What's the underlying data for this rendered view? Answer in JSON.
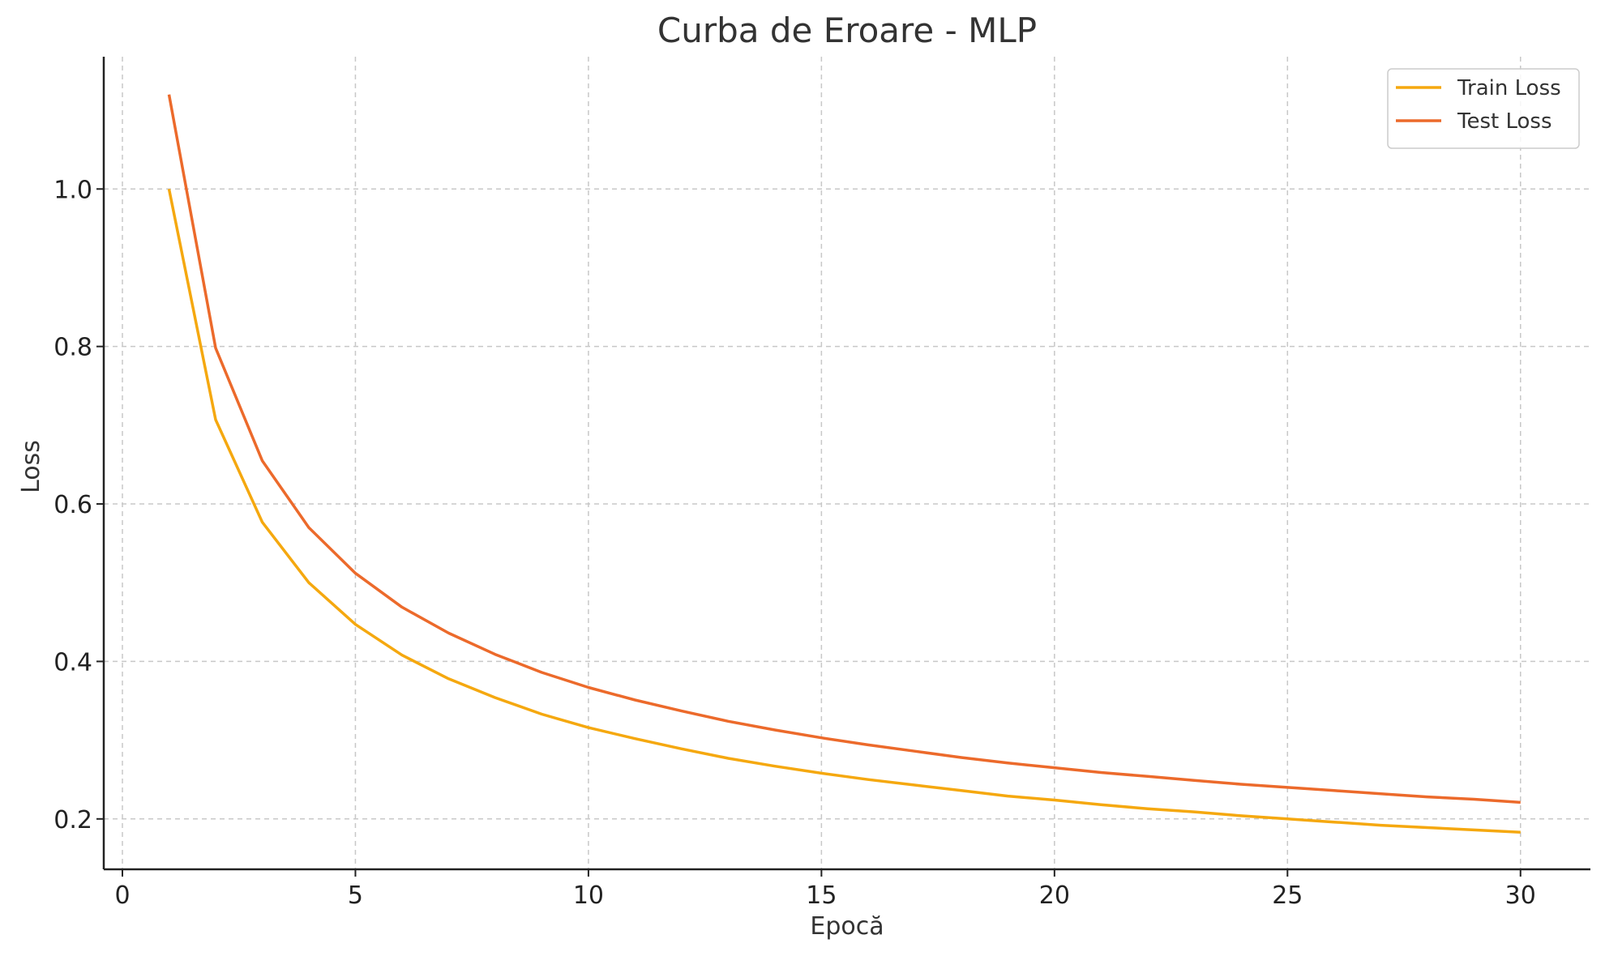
{
  "chart_data": {
    "type": "line",
    "title": "Curba de Eroare - MLP",
    "xlabel": "Epocă",
    "ylabel": "Loss",
    "xlim": [
      -0.4,
      31.5
    ],
    "ylim": [
      0.136,
      1.168
    ],
    "xticks": [
      0,
      5,
      10,
      15,
      20,
      25,
      30
    ],
    "yticks": [
      0.2,
      0.4,
      0.6,
      0.8,
      1.0
    ],
    "grid": true,
    "legend_position": "top-right",
    "x": [
      1,
      2,
      3,
      4,
      5,
      6,
      7,
      8,
      9,
      10,
      11,
      12,
      13,
      14,
      15,
      16,
      17,
      18,
      19,
      20,
      21,
      22,
      23,
      24,
      25,
      26,
      27,
      28,
      29,
      30
    ],
    "series": [
      {
        "name": "Train Loss",
        "color": "#f5a80f",
        "values": [
          1.0,
          0.707,
          0.577,
          0.5,
          0.447,
          0.408,
          0.378,
          0.354,
          0.333,
          0.316,
          0.302,
          0.289,
          0.277,
          0.267,
          0.258,
          0.25,
          0.243,
          0.236,
          0.229,
          0.224,
          0.218,
          0.213,
          0.209,
          0.204,
          0.2,
          0.196,
          0.192,
          0.189,
          0.186,
          0.183
        ]
      },
      {
        "name": "Test Loss",
        "color": "#ec6a2b",
        "values": [
          1.12,
          0.798,
          0.655,
          0.57,
          0.512,
          0.469,
          0.436,
          0.409,
          0.386,
          0.367,
          0.351,
          0.337,
          0.324,
          0.313,
          0.303,
          0.294,
          0.286,
          0.278,
          0.271,
          0.265,
          0.259,
          0.254,
          0.249,
          0.244,
          0.24,
          0.236,
          0.232,
          0.228,
          0.225,
          0.221
        ]
      }
    ]
  }
}
